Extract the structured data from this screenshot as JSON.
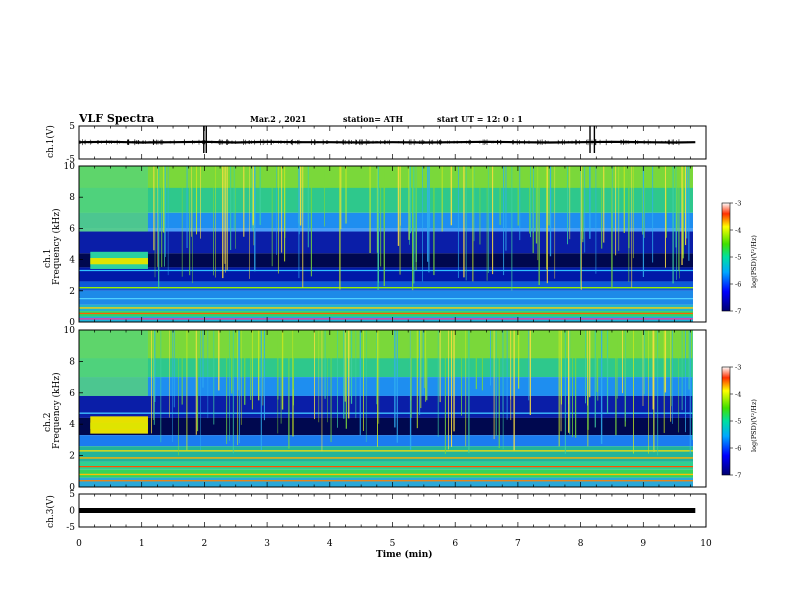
{
  "header": {
    "title": "VLF Spectra",
    "date": "Mar.2 , 2021",
    "station": "station= ATH",
    "start": "start UT = 12: 0 : 1"
  },
  "labels": {
    "ch1_wave_ylabel": "ch.1(V)",
    "ch1_spec_ylabel": "ch.1",
    "ch2_spec_ylabel": "ch.2",
    "freq_label": "Frequency (kHz)",
    "ch3_wave_ylabel": "ch.3(V)",
    "xlabel": "Time (min)",
    "colorbar_label": "log(PSD)(V²/Hz)"
  },
  "chart_data": [
    {
      "type": "line",
      "name": "ch1-waveform",
      "ylabel": "ch.1(V)",
      "ylim": [
        -5,
        5
      ],
      "yticks": [
        "5",
        "-5"
      ],
      "x": [
        0,
        0.5,
        1,
        1.5,
        2,
        2.5,
        3,
        3.5,
        4,
        4.5,
        5,
        5.5,
        6,
        6.5,
        7,
        7.5,
        8,
        8.5,
        9,
        9.5,
        9.83
      ],
      "y": [
        0.1,
        0.2,
        0.0,
        0.1,
        0.2,
        0.0,
        0.2,
        0.1,
        0.1,
        0.0,
        0.1,
        0.0,
        0.1,
        0.2,
        0.1,
        0.0,
        0.1,
        0.2,
        0.1,
        0.0,
        0.1
      ]
    },
    {
      "type": "heatmap",
      "name": "ch1-spectrogram",
      "ylabel": "Frequency (kHz)",
      "ylim": [
        0,
        10
      ],
      "yticks": [
        "0",
        "2",
        "4",
        "6",
        "8",
        "10"
      ],
      "colorbar": {
        "label": "log(PSD)(V²/Hz)",
        "range": [
          -7,
          -3
        ],
        "ticks": [
          "-3",
          "-4",
          "-5",
          "-6",
          "-7"
        ]
      }
    },
    {
      "type": "heatmap",
      "name": "ch2-spectrogram",
      "ylabel": "Frequency (kHz)",
      "ylim": [
        0,
        10
      ],
      "yticks": [
        "0",
        "2",
        "4",
        "6",
        "8",
        "10"
      ],
      "colorbar": {
        "label": "log(PSD)(V²/Hz)",
        "range": [
          -7,
          -3
        ],
        "ticks": [
          "-3",
          "-4",
          "-5",
          "-6",
          "-7"
        ]
      }
    },
    {
      "type": "line",
      "name": "ch3-waveform",
      "ylabel": "ch.3(V)",
      "ylim": [
        -5,
        5
      ],
      "yticks": [
        "5",
        "0",
        "-5"
      ],
      "x": [
        0,
        9.83
      ],
      "y": [
        0,
        0
      ]
    }
  ],
  "xaxis": {
    "xlim": [
      0,
      10
    ],
    "xticks": [
      "0",
      "1",
      "2",
      "3",
      "4",
      "5",
      "6",
      "7",
      "8",
      "9",
      "10"
    ]
  }
}
